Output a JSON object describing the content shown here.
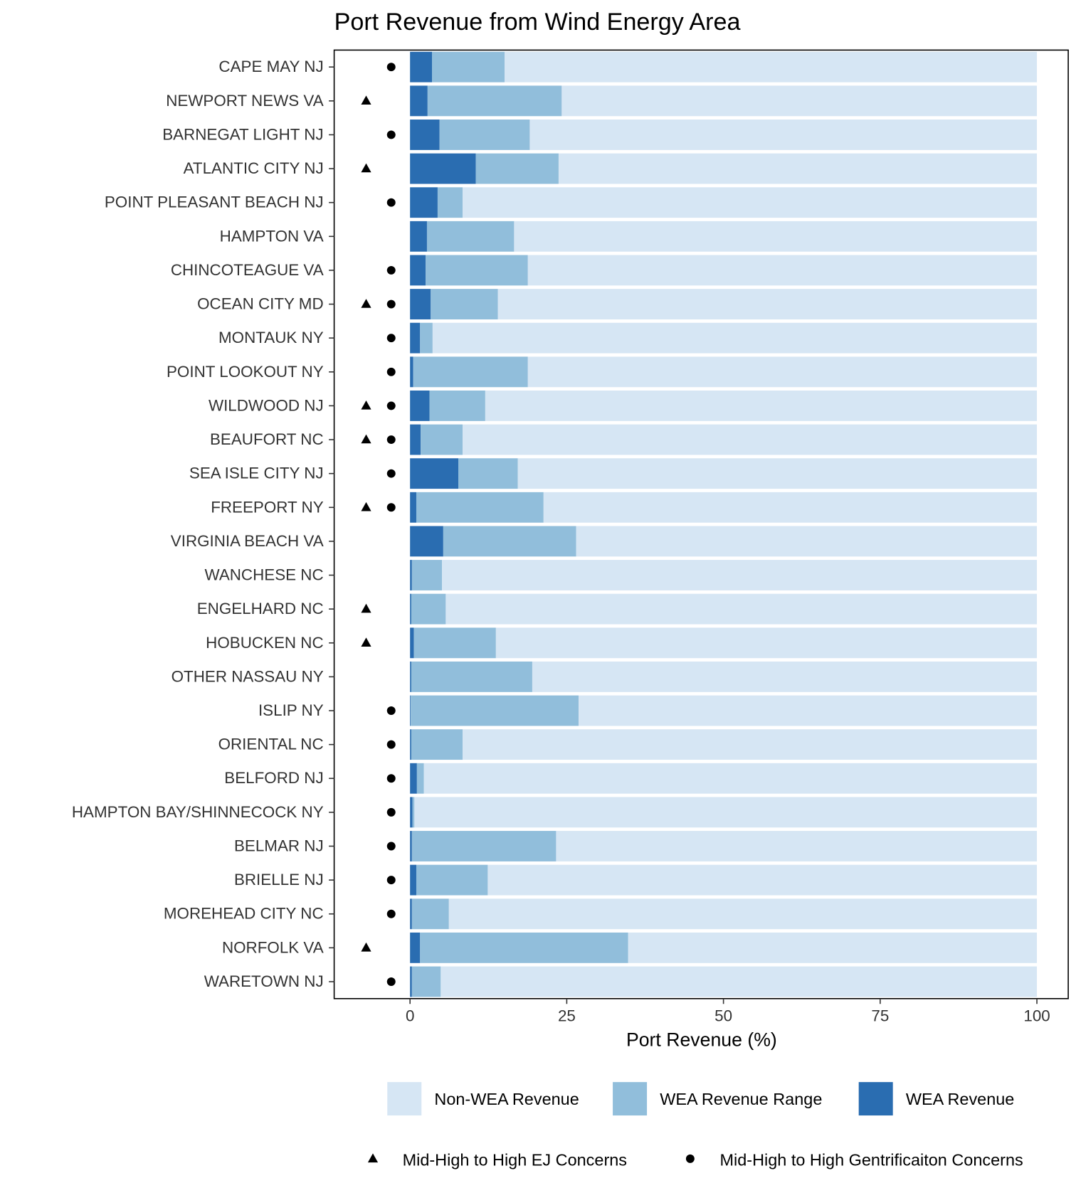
{
  "chart_data": {
    "type": "stacked-barh",
    "title": "Port Revenue from Wind Energy Area",
    "x_label": "Port Revenue (%)",
    "categories": [
      "CAPE MAY NJ",
      "NEWPORT NEWS VA",
      "BARNEGAT LIGHT NJ",
      "ATLANTIC CITY NJ",
      "POINT PLEASANT BEACH NJ",
      "HAMPTON VA",
      "CHINCOTEAGUE VA",
      "OCEAN CITY MD",
      "MONTAUK NY",
      "POINT LOOKOUT NY",
      "WILDWOOD NJ",
      "BEAUFORT NC",
      "SEA ISLE CITY NJ",
      "FREEPORT NY",
      "VIRGINIA BEACH VA",
      "WANCHESE NC",
      "ENGELHARD NC",
      "HOBUCKEN NC",
      "OTHER NASSAU NY",
      "ISLIP NY",
      "ORIENTAL NC",
      "BELFORD NJ",
      "HAMPTON BAY/SHINNECOCK NY",
      "BELMAR NJ",
      "BRIELLE NJ",
      "MOREHEAD CITY NC",
      "NORFOLK VA",
      "WARETOWN NJ"
    ],
    "series": [
      {
        "name": "Non-WEA Revenue",
        "color": "#d6e6f4",
        "values": [
          84.9,
          75.8,
          80.9,
          76.3,
          91.6,
          83.4,
          81.2,
          86.0,
          96.4,
          81.2,
          88.0,
          91.6,
          82.8,
          78.7,
          73.5,
          94.9,
          94.3,
          86.3,
          80.5,
          73.1,
          91.6,
          97.8,
          99.3,
          76.7,
          87.6,
          93.8,
          65.2,
          95.1
        ]
      },
      {
        "name": "WEA Revenue Range",
        "color": "#91bedb",
        "values": [
          11.6,
          21.4,
          14.4,
          13.2,
          4.0,
          13.9,
          16.3,
          10.7,
          2.0,
          18.3,
          8.9,
          6.7,
          9.5,
          20.3,
          21.2,
          4.8,
          5.5,
          13.1,
          19.3,
          26.8,
          8.2,
          1.1,
          0.3,
          23.0,
          11.4,
          5.9,
          33.2,
          4.6
        ]
      },
      {
        "name": "WEA Revenue",
        "color": "#2a6db1",
        "values": [
          3.5,
          2.8,
          4.7,
          10.5,
          4.4,
          2.7,
          2.5,
          3.3,
          1.6,
          0.5,
          3.1,
          1.7,
          7.7,
          1.0,
          5.3,
          0.3,
          0.2,
          0.6,
          0.2,
          0.1,
          0.2,
          1.1,
          0.4,
          0.3,
          1.0,
          0.3,
          1.6,
          0.3
        ]
      }
    ],
    "markers": [
      {
        "name": "Mid-High to High EJ Concerns",
        "shape": "triangle",
        "color": "#000000",
        "values": [
          null,
          -7,
          null,
          -7,
          null,
          null,
          null,
          -7,
          null,
          null,
          -7,
          -7,
          null,
          -7,
          null,
          null,
          -7,
          -7,
          null,
          null,
          null,
          null,
          null,
          null,
          null,
          null,
          -7,
          null
        ]
      },
      {
        "name": "Mid-High to High Gentrificaiton Concerns",
        "shape": "circle",
        "color": "#000000",
        "values": [
          -3,
          null,
          -3,
          null,
          -3,
          null,
          -3,
          -3,
          -3,
          -3,
          -3,
          -3,
          -3,
          -3,
          null,
          null,
          null,
          null,
          null,
          -3,
          -3,
          -3,
          -3,
          -3,
          -3,
          -3,
          null,
          -3
        ]
      }
    ],
    "xlim": [
      -12.1,
      105
    ],
    "xticks": [
      0,
      25,
      50,
      75,
      100
    ]
  }
}
